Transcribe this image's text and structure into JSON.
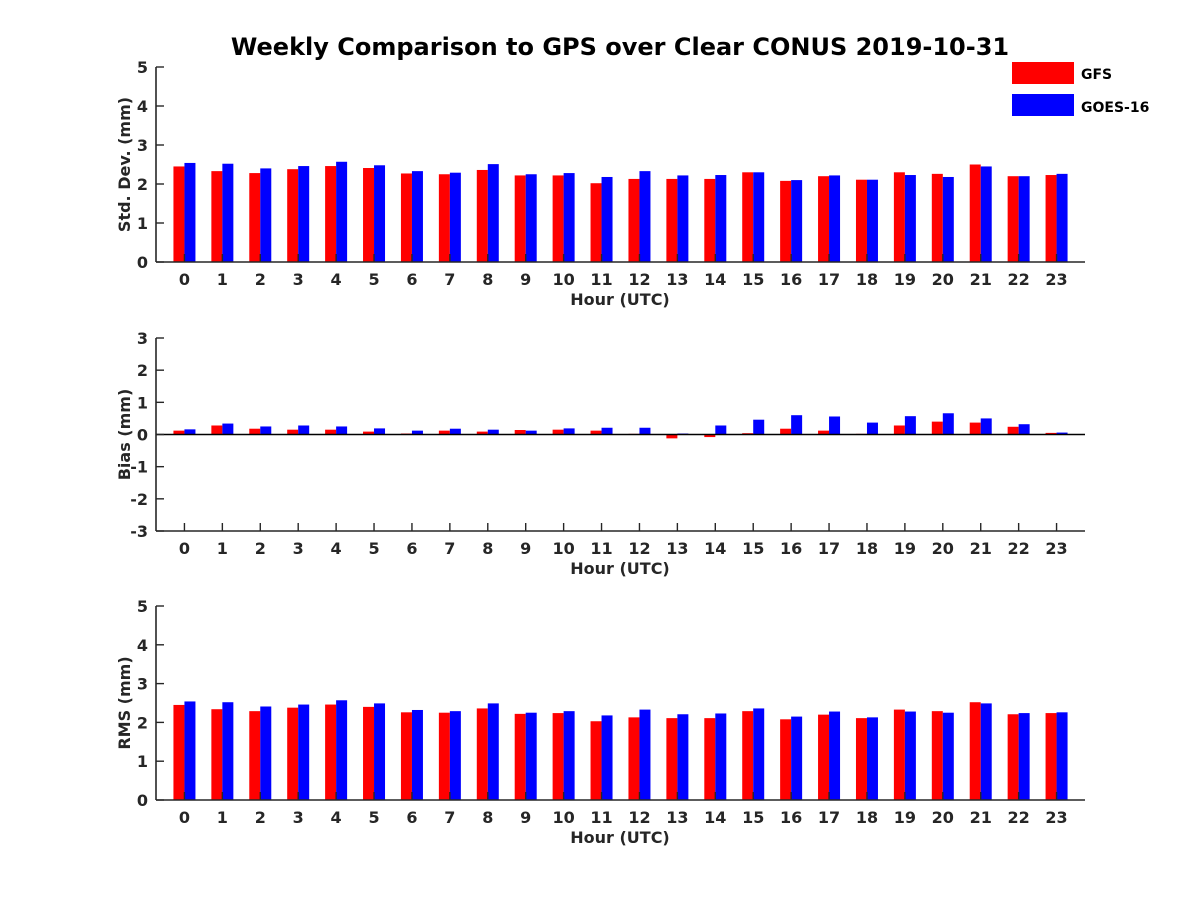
{
  "chart_data": {
    "title": "Weekly Comparison to GPS over Clear CONUS 2019-10-31",
    "type": "bar",
    "legend": {
      "position": "top-right",
      "entries": [
        {
          "name": "GFS",
          "color": "#ff0000"
        },
        {
          "name": "GOES-16",
          "color": "#0000ff"
        }
      ]
    },
    "panels": [
      {
        "type": "bar",
        "xlabel": "Hour (UTC)",
        "ylabel": "Std. Dev. (mm)",
        "ylim": [
          0,
          5
        ],
        "yticks": [
          0,
          1,
          2,
          3,
          4,
          5
        ],
        "categories": [
          "0",
          "1",
          "2",
          "3",
          "4",
          "5",
          "6",
          "7",
          "8",
          "9",
          "10",
          "11",
          "12",
          "13",
          "14",
          "15",
          "16",
          "17",
          "18",
          "19",
          "20",
          "21",
          "22",
          "23"
        ],
        "series": [
          {
            "name": "GFS",
            "values": [
              2.45,
              2.33,
              2.28,
              2.38,
              2.46,
              2.41,
              2.27,
              2.25,
              2.36,
              2.22,
              2.22,
              2.02,
              2.13,
              2.13,
              2.13,
              2.3,
              2.08,
              2.2,
              2.11,
              2.3,
              2.26,
              2.5,
              2.2,
              2.23
            ]
          },
          {
            "name": "GOES-16",
            "values": [
              2.54,
              2.52,
              2.4,
              2.46,
              2.57,
              2.48,
              2.33,
              2.29,
              2.51,
              2.25,
              2.28,
              2.18,
              2.33,
              2.22,
              2.23,
              2.3,
              2.1,
              2.22,
              2.11,
              2.23,
              2.18,
              2.45,
              2.2,
              2.26
            ]
          }
        ]
      },
      {
        "type": "bar",
        "xlabel": "Hour (UTC)",
        "ylabel": "Bias (mm)",
        "ylim": [
          -3,
          3
        ],
        "yticks": [
          -3,
          -2,
          -1,
          0,
          1,
          2,
          3
        ],
        "categories": [
          "0",
          "1",
          "2",
          "3",
          "4",
          "5",
          "6",
          "7",
          "8",
          "9",
          "10",
          "11",
          "12",
          "13",
          "14",
          "15",
          "16",
          "17",
          "18",
          "19",
          "20",
          "21",
          "22",
          "23"
        ],
        "series": [
          {
            "name": "GFS",
            "values": [
              0.12,
              0.28,
              0.18,
              0.15,
              0.15,
              0.09,
              0.03,
              0.12,
              0.09,
              0.14,
              0.15,
              0.12,
              0.02,
              -0.12,
              -0.08,
              0.04,
              0.18,
              0.12,
              0.02,
              0.28,
              0.4,
              0.37,
              0.24,
              0.05
            ]
          },
          {
            "name": "GOES-16",
            "values": [
              0.16,
              0.34,
              0.25,
              0.28,
              0.25,
              0.19,
              0.12,
              0.18,
              0.15,
              0.12,
              0.19,
              0.21,
              0.21,
              0.03,
              0.28,
              0.46,
              0.6,
              0.56,
              0.37,
              0.57,
              0.66,
              0.5,
              0.32,
              0.06
            ]
          }
        ]
      },
      {
        "type": "bar",
        "xlabel": "Hour (UTC)",
        "ylabel": "RMS (mm)",
        "ylim": [
          0,
          5
        ],
        "yticks": [
          0,
          1,
          2,
          3,
          4,
          5
        ],
        "categories": [
          "0",
          "1",
          "2",
          "3",
          "4",
          "5",
          "6",
          "7",
          "8",
          "9",
          "10",
          "11",
          "12",
          "13",
          "14",
          "15",
          "16",
          "17",
          "18",
          "19",
          "20",
          "21",
          "22",
          "23"
        ],
        "series": [
          {
            "name": "GFS",
            "values": [
              2.45,
              2.34,
              2.29,
              2.38,
              2.46,
              2.4,
              2.26,
              2.25,
              2.36,
              2.22,
              2.24,
              2.03,
              2.13,
              2.11,
              2.11,
              2.29,
              2.08,
              2.2,
              2.11,
              2.33,
              2.29,
              2.52,
              2.21,
              2.24
            ]
          },
          {
            "name": "GOES-16",
            "values": [
              2.54,
              2.52,
              2.41,
              2.46,
              2.57,
              2.49,
              2.32,
              2.29,
              2.49,
              2.25,
              2.29,
              2.18,
              2.33,
              2.21,
              2.23,
              2.36,
              2.15,
              2.28,
              2.13,
              2.28,
              2.25,
              2.49,
              2.24,
              2.26
            ]
          }
        ]
      }
    ]
  }
}
